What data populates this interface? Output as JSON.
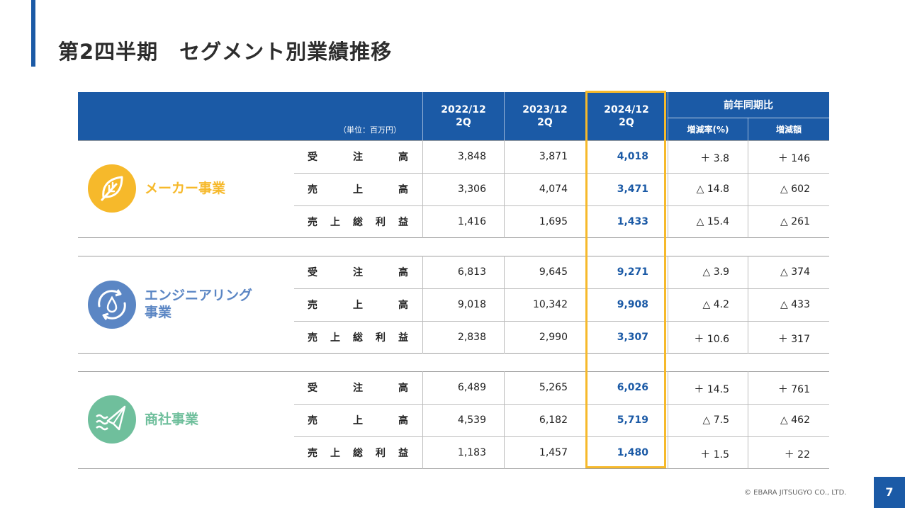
{
  "title": "第2四半期　セグメント別業績推移",
  "header": {
    "unit": "（単位：百万円）",
    "years": [
      {
        "year": "2022/12",
        "q": "2Q"
      },
      {
        "year": "2023/12",
        "q": "2Q"
      },
      {
        "year": "2024/12",
        "q": "2Q"
      }
    ],
    "comparison_title": "前年同期比",
    "comparison_cols": [
      "増減率(%)",
      "増減額"
    ]
  },
  "segments": [
    {
      "name": "メーカー事業",
      "color": "#f6b92b",
      "icon": "leaf-icon",
      "rows": [
        {
          "metric": [
            "受",
            "注",
            "高"
          ],
          "v2022": "3,848",
          "v2023": "3,871",
          "v2024": "4,018",
          "rate": "＋ 3.8",
          "amount": "＋ 146"
        },
        {
          "metric": [
            "売",
            "上",
            "高"
          ],
          "v2022": "3,306",
          "v2023": "4,074",
          "v2024": "3,471",
          "rate": "△ 14.8",
          "amount": "△ 602"
        },
        {
          "metric": [
            "売",
            "上",
            "総",
            "利",
            "益"
          ],
          "v2022": "1,416",
          "v2023": "1,695",
          "v2024": "1,433",
          "rate": "△ 15.4",
          "amount": "△ 261"
        }
      ]
    },
    {
      "name_line1": "エンジニアリング",
      "name_line2": "事業",
      "color": "#5b86c4",
      "icon": "water-cycle-icon",
      "rows": [
        {
          "metric": [
            "受",
            "注",
            "高"
          ],
          "v2022": "6,813",
          "v2023": "9,645",
          "v2024": "9,271",
          "rate": "△ 3.9",
          "amount": "△ 374"
        },
        {
          "metric": [
            "売",
            "上",
            "高"
          ],
          "v2022": "9,018",
          "v2023": "10,342",
          "v2024": "9,908",
          "rate": "△ 4.2",
          "amount": "△ 433"
        },
        {
          "metric": [
            "売",
            "上",
            "総",
            "利",
            "益"
          ],
          "v2022": "2,838",
          "v2023": "2,990",
          "v2024": "3,307",
          "rate": "＋ 10.6",
          "amount": "＋ 317"
        }
      ]
    },
    {
      "name": "商社事業",
      "color": "#6fbf9c",
      "icon": "paper-plane-wave-icon",
      "rows": [
        {
          "metric": [
            "受",
            "注",
            "高"
          ],
          "v2022": "6,489",
          "v2023": "5,265",
          "v2024": "6,026",
          "rate": "＋ 14.5",
          "amount": "＋ 761"
        },
        {
          "metric": [
            "売",
            "上",
            "高"
          ],
          "v2022": "4,539",
          "v2023": "6,182",
          "v2024": "5,719",
          "rate": "△ 7.5",
          "amount": "△ 462"
        },
        {
          "metric": [
            "売",
            "上",
            "総",
            "利",
            "益"
          ],
          "v2022": "1,183",
          "v2023": "1,457",
          "v2024": "1,480",
          "rate": "＋ 1.5",
          "amount": "＋ 22"
        }
      ]
    }
  ],
  "footer": "© EBARA JITSUGYO CO., LTD.",
  "page_number": "7"
}
